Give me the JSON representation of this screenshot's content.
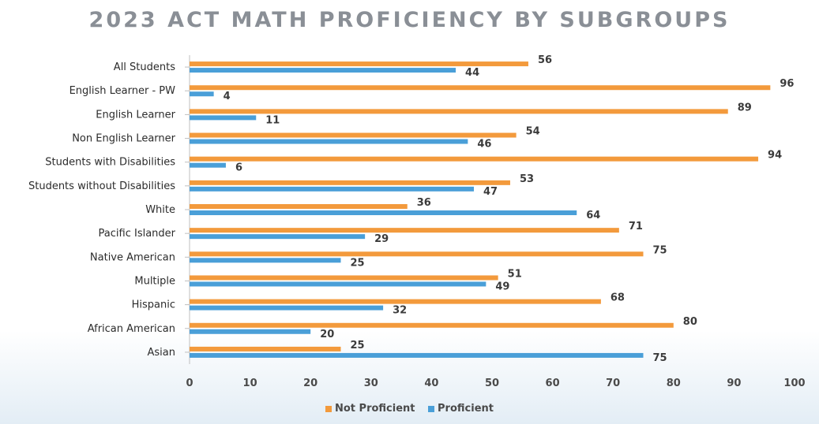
{
  "chart_data": {
    "type": "bar",
    "orientation": "horizontal",
    "title": "2023 ACT MATH PROFICIENCY BY SUBGROUPS",
    "categories": [
      "All Students",
      "English Learner - PW",
      "English Learner",
      "Non English Learner",
      "Students with Disabilities",
      "Students without Disabilities",
      "White",
      "Pacific Islander",
      "Native American",
      "Multiple",
      "Hispanic",
      "African American",
      "Asian"
    ],
    "series": [
      {
        "name": "Not Proficient",
        "color": "#f39a3c",
        "values": [
          56,
          96,
          89,
          54,
          94,
          53,
          36,
          71,
          75,
          51,
          68,
          80,
          25
        ]
      },
      {
        "name": "Proficient",
        "color": "#4a9fd8",
        "values": [
          44,
          4,
          11,
          46,
          6,
          47,
          64,
          29,
          25,
          49,
          32,
          20,
          75
        ]
      }
    ],
    "xlim": [
      0,
      100
    ],
    "xticks": [
      0,
      10,
      20,
      30,
      40,
      50,
      60,
      70,
      80,
      90,
      100
    ],
    "legend_position": "bottom",
    "grid": false
  }
}
